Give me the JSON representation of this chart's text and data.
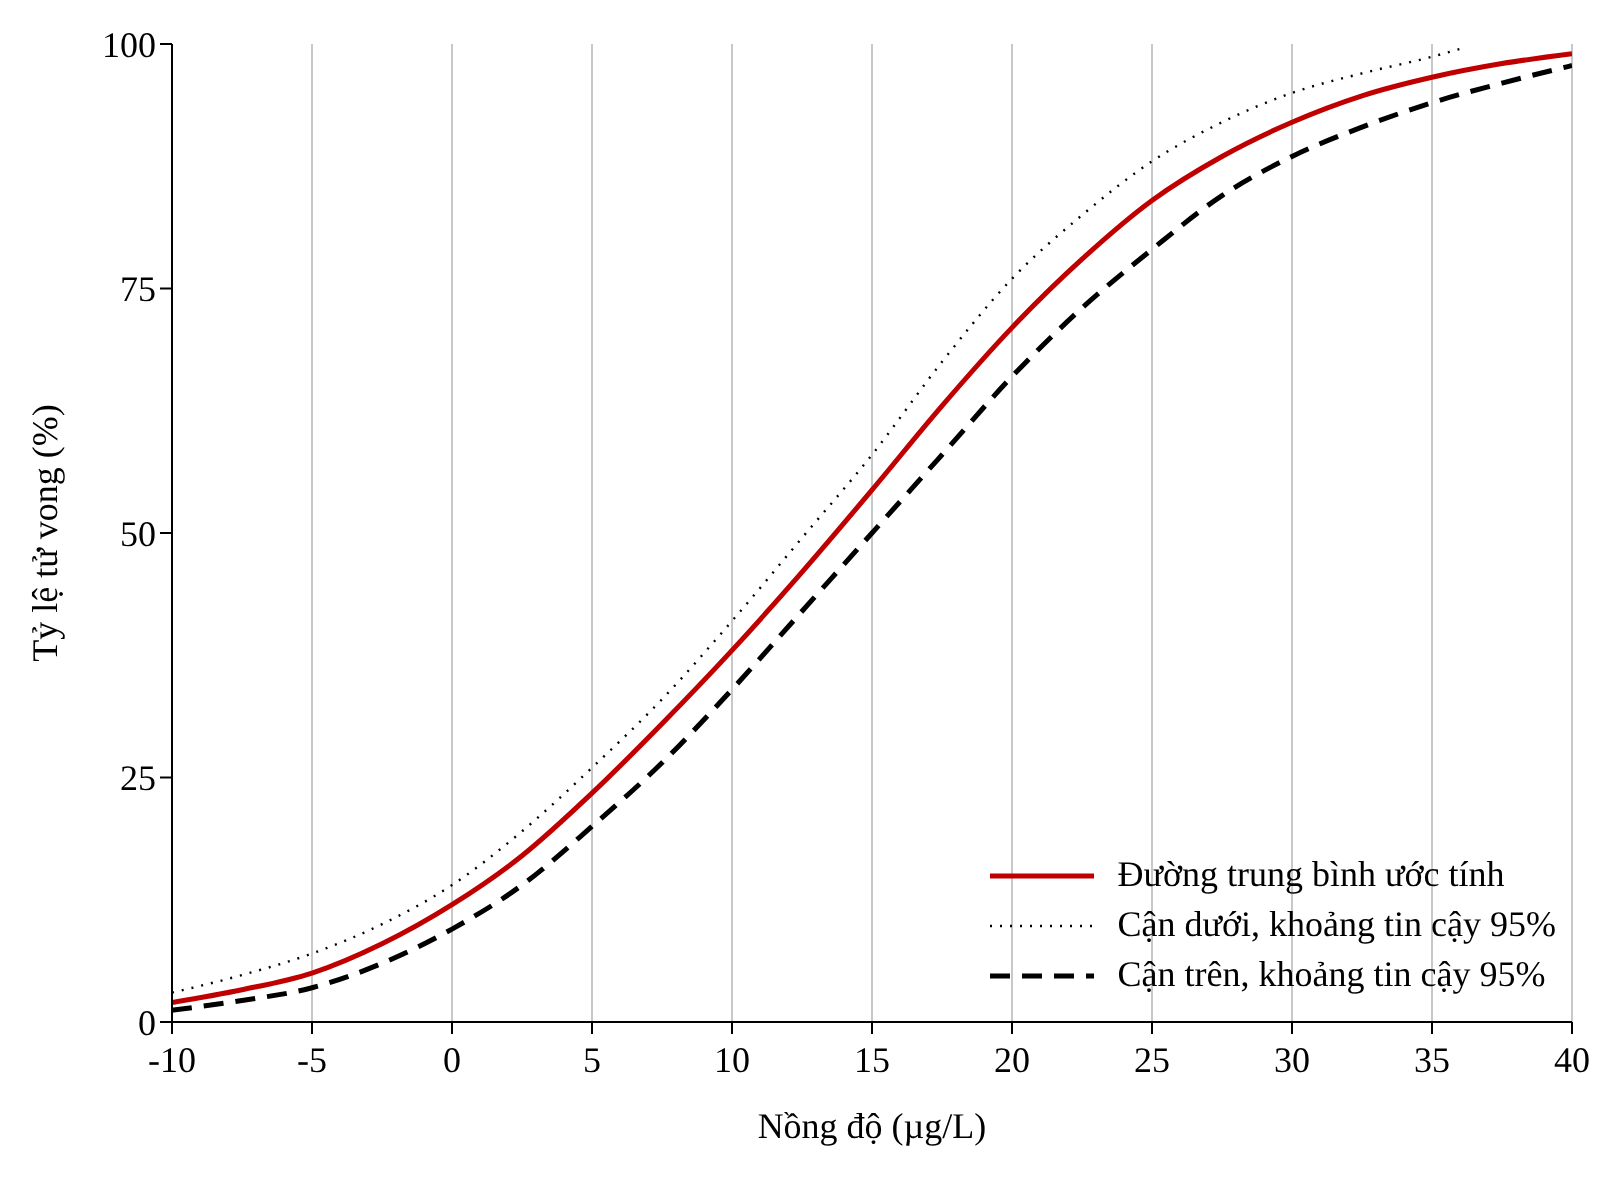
{
  "chart_data": {
    "type": "line",
    "xlabel": "Nồng độ (µg/L)",
    "ylabel": "Tỷ lệ tử vong (%)",
    "x": [
      -10,
      -7.5,
      -5,
      -2.5,
      0,
      2.5,
      5,
      7.5,
      10,
      12.5,
      15,
      17.5,
      20,
      22.5,
      25,
      27.5,
      30,
      32.5,
      35,
      37.5,
      40
    ],
    "series": [
      {
        "name": "Đường trung bình ước tính",
        "color": "#c00000",
        "line_style": "solid",
        "values": [
          2,
          3.3,
          5,
          8,
          12,
          17,
          23.4,
          30.5,
          38,
          46,
          54.4,
          63,
          71,
          78,
          84,
          88.5,
          92,
          94.7,
          96.6,
          98,
          99
        ]
      },
      {
        "name": "Cận dưới, khoảng tin cậy 95%",
        "color": "#000000",
        "line_style": "dotted",
        "x": [
          -10,
          -7.5,
          -5,
          -2.5,
          0,
          2.5,
          5,
          7.5,
          10,
          12.5,
          15,
          17.5,
          20,
          22.5,
          25,
          27.5,
          30,
          32.5,
          35,
          36
        ],
        "values": [
          3,
          4.8,
          7,
          10,
          14,
          19.5,
          26,
          33,
          41,
          49.5,
          58,
          67.5,
          76,
          82.5,
          88,
          92,
          95,
          97,
          98.7,
          99.5
        ]
      },
      {
        "name": "Cận trên, khoảng tin cậy 95%",
        "color": "#000000",
        "line_style": "dashed",
        "values": [
          1.2,
          2.2,
          3.5,
          6,
          9.5,
          14,
          20,
          26.5,
          34,
          42,
          50,
          58,
          66,
          73,
          79,
          84.5,
          88.5,
          91.5,
          94,
          96,
          97.8
        ]
      }
    ],
    "xlim": [
      -10,
      40
    ],
    "xticks": [
      -10,
      -5,
      0,
      5,
      10,
      15,
      20,
      25,
      30,
      35,
      40
    ],
    "ylim": [
      0,
      100
    ],
    "yticks": [
      0,
      25,
      50,
      75,
      100
    ],
    "grid": "x",
    "legend": "bottom right"
  }
}
